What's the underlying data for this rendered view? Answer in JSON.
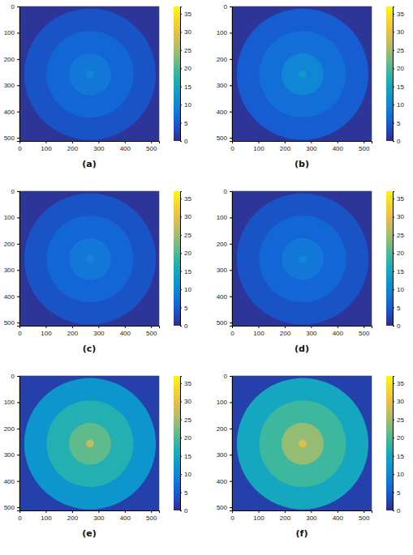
{
  "chart_data": [
    {
      "type": "heatmap",
      "title": "(a)",
      "xlim": [
        0,
        530
      ],
      "ylim": [
        0,
        512
      ],
      "xticks": [
        0,
        100,
        200,
        300,
        400,
        500
      ],
      "yticks": [
        0,
        100,
        200,
        300,
        400,
        500
      ],
      "center_x": 268,
      "center_y": 258,
      "background": 1,
      "rings": [
        {
          "radius": 250,
          "value": 4
        },
        {
          "radius": 165,
          "value": 6
        },
        {
          "radius": 80,
          "value": 8
        },
        {
          "radius": 15,
          "value": 10
        }
      ],
      "colorbar_range": [
        0,
        37
      ],
      "colorbar_ticks": [
        0,
        5,
        10,
        15,
        20,
        25,
        30,
        35
      ]
    },
    {
      "type": "heatmap",
      "title": "(b)",
      "xlim": [
        0,
        530
      ],
      "ylim": [
        0,
        512
      ],
      "xticks": [
        0,
        100,
        200,
        300,
        400,
        500
      ],
      "yticks": [
        0,
        100,
        200,
        300,
        400,
        500
      ],
      "center_x": 268,
      "center_y": 258,
      "background": 1,
      "rings": [
        {
          "radius": 250,
          "value": 5
        },
        {
          "radius": 165,
          "value": 7
        },
        {
          "radius": 80,
          "value": 10
        },
        {
          "radius": 15,
          "value": 13
        }
      ],
      "colorbar_range": [
        0,
        37
      ],
      "colorbar_ticks": [
        0,
        5,
        10,
        15,
        20,
        25,
        30,
        35
      ]
    },
    {
      "type": "heatmap",
      "title": "(c)",
      "xlim": [
        0,
        530
      ],
      "ylim": [
        0,
        512
      ],
      "xticks": [
        0,
        100,
        200,
        300,
        400,
        500
      ],
      "yticks": [
        0,
        100,
        200,
        300,
        400,
        500
      ],
      "center_x": 268,
      "center_y": 258,
      "background": 1,
      "rings": [
        {
          "radius": 250,
          "value": 4
        },
        {
          "radius": 165,
          "value": 6
        },
        {
          "radius": 80,
          "value": 8
        },
        {
          "radius": 15,
          "value": 10
        }
      ],
      "colorbar_range": [
        0,
        37
      ],
      "colorbar_ticks": [
        0,
        5,
        10,
        15,
        20,
        25,
        30,
        35
      ]
    },
    {
      "type": "heatmap",
      "title": "(d)",
      "xlim": [
        0,
        530
      ],
      "ylim": [
        0,
        512
      ],
      "xticks": [
        0,
        100,
        200,
        300,
        400,
        500
      ],
      "yticks": [
        0,
        100,
        200,
        300,
        400,
        500
      ],
      "center_x": 268,
      "center_y": 258,
      "background": 1,
      "rings": [
        {
          "radius": 250,
          "value": 4
        },
        {
          "radius": 165,
          "value": 6
        },
        {
          "radius": 80,
          "value": 8
        },
        {
          "radius": 15,
          "value": 10
        }
      ],
      "colorbar_range": [
        0,
        37
      ],
      "colorbar_ticks": [
        0,
        5,
        10,
        15,
        20,
        25,
        30,
        35
      ]
    },
    {
      "type": "heatmap",
      "title": "(e)",
      "xlim": [
        0,
        530
      ],
      "ylim": [
        0,
        512
      ],
      "xticks": [
        0,
        100,
        200,
        300,
        400,
        500
      ],
      "yticks": [
        0,
        100,
        200,
        300,
        400,
        500
      ],
      "center_x": 268,
      "center_y": 258,
      "background": 2,
      "rings": [
        {
          "radius": 250,
          "value": 12
        },
        {
          "radius": 165,
          "value": 17
        },
        {
          "radius": 80,
          "value": 21
        },
        {
          "radius": 15,
          "value": 27
        }
      ],
      "colorbar_range": [
        0,
        37
      ],
      "colorbar_ticks": [
        0,
        5,
        10,
        15,
        20,
        25,
        30,
        35
      ]
    },
    {
      "type": "heatmap",
      "title": "(f)",
      "xlim": [
        0,
        530
      ],
      "ylim": [
        0,
        512
      ],
      "xticks": [
        0,
        100,
        200,
        300,
        400,
        500
      ],
      "yticks": [
        0,
        100,
        200,
        300,
        400,
        500
      ],
      "center_x": 268,
      "center_y": 258,
      "background": 2,
      "rings": [
        {
          "radius": 250,
          "value": 15
        },
        {
          "radius": 165,
          "value": 19
        },
        {
          "radius": 80,
          "value": 24
        },
        {
          "radius": 15,
          "value": 29
        }
      ],
      "colorbar_range": [
        0,
        37
      ],
      "colorbar_ticks": [
        0,
        5,
        10,
        15,
        20,
        25,
        30,
        35
      ]
    }
  ]
}
